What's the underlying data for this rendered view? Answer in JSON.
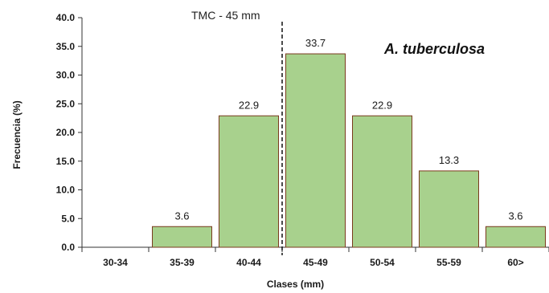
{
  "chart_data": {
    "type": "bar",
    "categories": [
      "30-34",
      "35-39",
      "40-44",
      "45-49",
      "50-54",
      "55-59",
      "60>"
    ],
    "values": [
      0,
      3.6,
      22.9,
      33.7,
      22.9,
      13.3,
      3.6
    ],
    "data_labels": [
      "",
      "3.6",
      "22.9",
      "33.7",
      "22.9",
      "13.3",
      "3.6"
    ],
    "yticks": [
      "0.0",
      "5.0",
      "10.0",
      "15.0",
      "20.0",
      "25.0",
      "30.0",
      "35.0",
      "40.0"
    ],
    "ylim": [
      0,
      40
    ],
    "xlabel": "Clases (mm)",
    "ylabel": "Frecuencia (%)",
    "annotation": "A. tuberculosa",
    "reference_line": {
      "label": "TMC - 45 mm",
      "style": "dashed",
      "position": "between 40-44 and 45-49"
    },
    "bar_color": "#a8d18d",
    "bar_edge_color": "#7a3b1e",
    "grid": false,
    "legend": "none"
  }
}
